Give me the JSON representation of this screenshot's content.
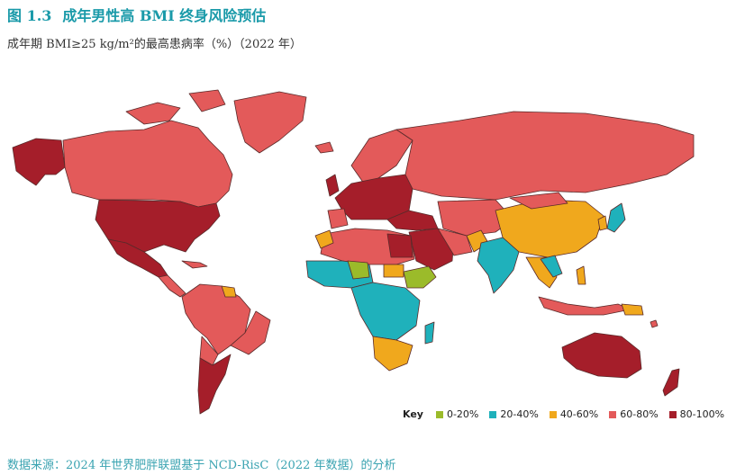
{
  "figure": {
    "number": "图 1.3",
    "title": "成年男性高 BMI 终身风险预估",
    "subtitle": "成年期 BMI≥25 kg/m²的最高患病率（%）（2022 年）"
  },
  "legend": {
    "key_label": "Key",
    "items": [
      {
        "label": "0-20%",
        "color": "#9bbb2a"
      },
      {
        "label": "20-40%",
        "color": "#1fb1bb"
      },
      {
        "label": "40-60%",
        "color": "#f0a81d"
      },
      {
        "label": "60-80%",
        "color": "#e35a5a"
      },
      {
        "label": "80-100%",
        "color": "#a51e2a"
      }
    ]
  },
  "source": "数据来源：2024 年世界肥胖联盟基于 NCD-RisC（2022 年数据）的分析",
  "colors": {
    "ocean": "#ffffff",
    "border": "#5a2a2a",
    "title": "#1a9aa9"
  }
}
